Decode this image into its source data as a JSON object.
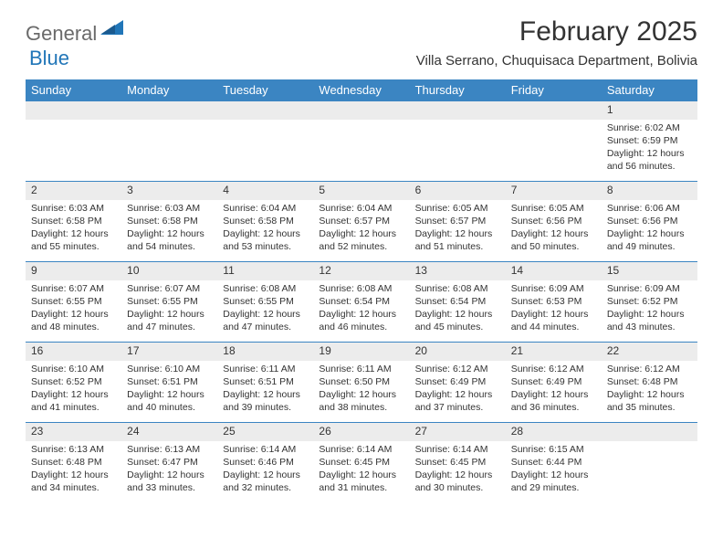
{
  "logo": {
    "part1": "General",
    "part2": "Blue"
  },
  "title": "February 2025",
  "location": "Villa Serrano, Chuquisaca Department, Bolivia",
  "colors": {
    "header_bg": "#3b85c2",
    "header_text": "#ffffff",
    "daynum_bg": "#ececec",
    "text": "#333333",
    "logo_gray": "#6a6a6a",
    "logo_blue": "#2176b8",
    "rule": "#3b85c2",
    "page_bg": "#ffffff"
  },
  "fonts": {
    "title_size_pt": 30,
    "location_size_pt": 15,
    "weekday_size_pt": 13,
    "daynum_size_pt": 12,
    "body_size_pt": 10.5,
    "family": "Arial"
  },
  "weekdays": [
    "Sunday",
    "Monday",
    "Tuesday",
    "Wednesday",
    "Thursday",
    "Friday",
    "Saturday"
  ],
  "sunrise_label": "Sunrise:",
  "sunset_label": "Sunset:",
  "daylight_label": "Daylight:",
  "daylight_unit_hours": "hours",
  "daylight_unit_and": "and",
  "daylight_unit_minutes": "minutes.",
  "weeks": [
    [
      null,
      null,
      null,
      null,
      null,
      null,
      {
        "n": "1",
        "sunrise": "6:02 AM",
        "sunset": "6:59 PM",
        "dl_h": "12",
        "dl_m": "56"
      }
    ],
    [
      {
        "n": "2",
        "sunrise": "6:03 AM",
        "sunset": "6:58 PM",
        "dl_h": "12",
        "dl_m": "55"
      },
      {
        "n": "3",
        "sunrise": "6:03 AM",
        "sunset": "6:58 PM",
        "dl_h": "12",
        "dl_m": "54"
      },
      {
        "n": "4",
        "sunrise": "6:04 AM",
        "sunset": "6:58 PM",
        "dl_h": "12",
        "dl_m": "53"
      },
      {
        "n": "5",
        "sunrise": "6:04 AM",
        "sunset": "6:57 PM",
        "dl_h": "12",
        "dl_m": "52"
      },
      {
        "n": "6",
        "sunrise": "6:05 AM",
        "sunset": "6:57 PM",
        "dl_h": "12",
        "dl_m": "51"
      },
      {
        "n": "7",
        "sunrise": "6:05 AM",
        "sunset": "6:56 PM",
        "dl_h": "12",
        "dl_m": "50"
      },
      {
        "n": "8",
        "sunrise": "6:06 AM",
        "sunset": "6:56 PM",
        "dl_h": "12",
        "dl_m": "49"
      }
    ],
    [
      {
        "n": "9",
        "sunrise": "6:07 AM",
        "sunset": "6:55 PM",
        "dl_h": "12",
        "dl_m": "48"
      },
      {
        "n": "10",
        "sunrise": "6:07 AM",
        "sunset": "6:55 PM",
        "dl_h": "12",
        "dl_m": "47"
      },
      {
        "n": "11",
        "sunrise": "6:08 AM",
        "sunset": "6:55 PM",
        "dl_h": "12",
        "dl_m": "47"
      },
      {
        "n": "12",
        "sunrise": "6:08 AM",
        "sunset": "6:54 PM",
        "dl_h": "12",
        "dl_m": "46"
      },
      {
        "n": "13",
        "sunrise": "6:08 AM",
        "sunset": "6:54 PM",
        "dl_h": "12",
        "dl_m": "45"
      },
      {
        "n": "14",
        "sunrise": "6:09 AM",
        "sunset": "6:53 PM",
        "dl_h": "12",
        "dl_m": "44"
      },
      {
        "n": "15",
        "sunrise": "6:09 AM",
        "sunset": "6:52 PM",
        "dl_h": "12",
        "dl_m": "43"
      }
    ],
    [
      {
        "n": "16",
        "sunrise": "6:10 AM",
        "sunset": "6:52 PM",
        "dl_h": "12",
        "dl_m": "41"
      },
      {
        "n": "17",
        "sunrise": "6:10 AM",
        "sunset": "6:51 PM",
        "dl_h": "12",
        "dl_m": "40"
      },
      {
        "n": "18",
        "sunrise": "6:11 AM",
        "sunset": "6:51 PM",
        "dl_h": "12",
        "dl_m": "39"
      },
      {
        "n": "19",
        "sunrise": "6:11 AM",
        "sunset": "6:50 PM",
        "dl_h": "12",
        "dl_m": "38"
      },
      {
        "n": "20",
        "sunrise": "6:12 AM",
        "sunset": "6:49 PM",
        "dl_h": "12",
        "dl_m": "37"
      },
      {
        "n": "21",
        "sunrise": "6:12 AM",
        "sunset": "6:49 PM",
        "dl_h": "12",
        "dl_m": "36"
      },
      {
        "n": "22",
        "sunrise": "6:12 AM",
        "sunset": "6:48 PM",
        "dl_h": "12",
        "dl_m": "35"
      }
    ],
    [
      {
        "n": "23",
        "sunrise": "6:13 AM",
        "sunset": "6:48 PM",
        "dl_h": "12",
        "dl_m": "34"
      },
      {
        "n": "24",
        "sunrise": "6:13 AM",
        "sunset": "6:47 PM",
        "dl_h": "12",
        "dl_m": "33"
      },
      {
        "n": "25",
        "sunrise": "6:14 AM",
        "sunset": "6:46 PM",
        "dl_h": "12",
        "dl_m": "32"
      },
      {
        "n": "26",
        "sunrise": "6:14 AM",
        "sunset": "6:45 PM",
        "dl_h": "12",
        "dl_m": "31"
      },
      {
        "n": "27",
        "sunrise": "6:14 AM",
        "sunset": "6:45 PM",
        "dl_h": "12",
        "dl_m": "30"
      },
      {
        "n": "28",
        "sunrise": "6:15 AM",
        "sunset": "6:44 PM",
        "dl_h": "12",
        "dl_m": "29"
      },
      null
    ]
  ]
}
